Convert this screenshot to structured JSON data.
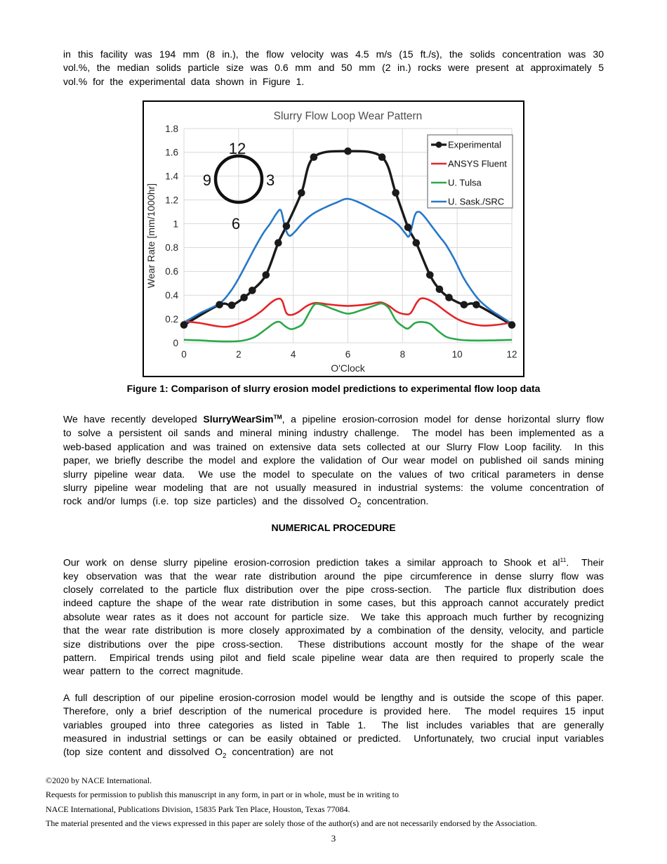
{
  "page": {
    "intro_paragraph": "in this facility was 194 mm (8 in.), the flow velocity was 4.5 m/s (15 ft./s), the solids concentration was 30 vol.%, the median solids particle size was 0.6 mm and 50 mm (2 in.) rocks were present at approximately 5 vol.% for the experimental data shown in Figure 1.",
    "figure_caption": "Figure 1: Comparison of slurry erosion model predictions to experimental flow loop data",
    "heading_numerical": "NUMERICAL PROCEDURE",
    "para_model": {
      "p1": "We have recently developed ",
      "brand": "SlurryWearSim",
      "tm": "TM",
      "p2": ", a pipeline erosion-corrosion model for dense horizontal slurry flow to solve a persistent oil sands and mineral mining industry challenge.  The model has been implemented as a web-based application and was trained on extensive data sets collected at our Slurry Flow Loop facility.  In this paper, we briefly describe the model and explore the validation of Our wear model on published oil sands mining slurry pipeline wear data.  We use the model to speculate on the values of two critical parameters in dense slurry pipeline wear modeling that are not usually measured in industrial systems: the volume concentration of rock and/or lumps (i.e. top size particles) and the dissolved O",
      "sub": "2",
      "p3": " concentration."
    },
    "para_numerical": {
      "p1": "Our work on dense slurry pipeline erosion-corrosion prediction takes a similar approach to Shook et al",
      "ref": "11",
      "p2": ".  Their key observation was that the wear rate distribution around the pipe circumference in dense slurry flow was closely correlated to the particle flux distribution over the pipe cross-section.  The particle flux distribution does indeed capture the shape of the wear rate distribution in some cases, but this approach cannot accurately predict absolute wear rates as it does not account for particle size.  We take this approach much further by recognizing that the wear rate distribution is more closely approximated by a combination of the density, velocity, and particle size distributions over the pipe cross-section.  These distributions account mostly for the shape of the wear pattern.  Empirical trends using pilot and field scale pipeline wear data are then required to properly scale the wear pattern to the correct magnitude."
    },
    "para_description": {
      "p1": "A full description of our pipeline erosion-corrosion model would be lengthy and is outside the scope of this paper.  Therefore, only a brief description of the numerical procedure is provided here.  The model requires 15 input variables grouped into three categories as listed in Table 1.  The list includes variables that are generally measured in industrial settings or can be easily obtained or predicted.  Unfortunately, two crucial input variables (top size content and dissolved O",
      "sub": "2",
      "p2": " concentration) are not"
    },
    "footer": {
      "lines": [
        "©2020 by NACE International.",
        "Requests for permission to publish this manuscript in any form, in part or in whole, must be in writing to",
        "NACE International, Publications Division, 15835 Park Ten Place, Houston, Texas 77084.",
        "The material presented and the views expressed in this paper are solely those of the author(s) and are not necessarily endorsed by the Association."
      ],
      "page_number": "3"
    }
  },
  "chart_data": {
    "type": "line",
    "title": "Slurry Flow Loop Wear Pattern",
    "xlabel": "O'Clock",
    "ylabel": "Wear Rate [mm/1000hr]",
    "xlim": [
      0,
      12
    ],
    "ylim": [
      0,
      1.8
    ],
    "xticks": [
      0,
      2,
      4,
      6,
      8,
      10,
      12
    ],
    "ytick_step": 0.2,
    "grid": true,
    "legend_position": "top-right",
    "inset_clock_labels": {
      "top": "12",
      "right": "3",
      "bottom": "6",
      "left": "9"
    },
    "colors": {
      "grid": "#d9d9d9",
      "title": "#4d4d4d",
      "tick": "#262626",
      "legend_border": "#808080"
    },
    "series": [
      {
        "name": "Experimental",
        "color": "#1a1a1a",
        "marker": true,
        "points": [
          [
            0,
            0.15
          ],
          [
            1.3,
            0.32
          ],
          [
            1.75,
            0.315
          ],
          [
            2.2,
            0.38
          ],
          [
            2.5,
            0.44
          ],
          [
            3.0,
            0.57
          ],
          [
            3.45,
            0.84
          ],
          [
            3.75,
            0.98
          ],
          [
            4.3,
            1.26
          ],
          [
            4.75,
            1.56
          ],
          [
            6.0,
            1.61
          ],
          [
            7.25,
            1.56
          ],
          [
            7.75,
            1.26
          ],
          [
            8.2,
            0.97
          ],
          [
            8.5,
            0.84
          ],
          [
            9.0,
            0.57
          ],
          [
            9.35,
            0.45
          ],
          [
            9.7,
            0.38
          ],
          [
            10.25,
            0.32
          ],
          [
            10.7,
            0.32
          ],
          [
            12,
            0.15
          ]
        ]
      },
      {
        "name": "ANSYS Fluent",
        "color": "#e32629",
        "marker": false,
        "points": [
          [
            0,
            0.18
          ],
          [
            0.6,
            0.165
          ],
          [
            1.2,
            0.14
          ],
          [
            1.6,
            0.135
          ],
          [
            2.0,
            0.16
          ],
          [
            2.4,
            0.2
          ],
          [
            2.8,
            0.26
          ],
          [
            3.2,
            0.34
          ],
          [
            3.45,
            0.37
          ],
          [
            3.6,
            0.35
          ],
          [
            3.75,
            0.25
          ],
          [
            3.95,
            0.235
          ],
          [
            4.2,
            0.26
          ],
          [
            4.5,
            0.31
          ],
          [
            4.8,
            0.335
          ],
          [
            5.2,
            0.325
          ],
          [
            5.6,
            0.315
          ],
          [
            6.0,
            0.31
          ],
          [
            6.4,
            0.315
          ],
          [
            6.8,
            0.325
          ],
          [
            7.2,
            0.34
          ],
          [
            7.5,
            0.31
          ],
          [
            7.8,
            0.26
          ],
          [
            8.1,
            0.24
          ],
          [
            8.3,
            0.25
          ],
          [
            8.5,
            0.33
          ],
          [
            8.65,
            0.37
          ],
          [
            8.85,
            0.37
          ],
          [
            9.2,
            0.33
          ],
          [
            9.6,
            0.26
          ],
          [
            10.0,
            0.2
          ],
          [
            10.4,
            0.165
          ],
          [
            10.9,
            0.145
          ],
          [
            11.4,
            0.15
          ],
          [
            12,
            0.17
          ]
        ]
      },
      {
        "name": "U. Tulsa",
        "color": "#2ba84a",
        "marker": false,
        "points": [
          [
            0,
            0.025
          ],
          [
            0.6,
            0.02
          ],
          [
            1.2,
            0.013
          ],
          [
            1.8,
            0.012
          ],
          [
            2.2,
            0.02
          ],
          [
            2.6,
            0.05
          ],
          [
            3.0,
            0.115
          ],
          [
            3.3,
            0.165
          ],
          [
            3.5,
            0.175
          ],
          [
            3.7,
            0.14
          ],
          [
            3.9,
            0.115
          ],
          [
            4.1,
            0.125
          ],
          [
            4.35,
            0.16
          ],
          [
            4.6,
            0.26
          ],
          [
            4.8,
            0.325
          ],
          [
            5.1,
            0.315
          ],
          [
            5.5,
            0.28
          ],
          [
            6.0,
            0.245
          ],
          [
            6.5,
            0.275
          ],
          [
            7.0,
            0.315
          ],
          [
            7.25,
            0.33
          ],
          [
            7.5,
            0.29
          ],
          [
            7.75,
            0.19
          ],
          [
            8.0,
            0.14
          ],
          [
            8.2,
            0.12
          ],
          [
            8.45,
            0.165
          ],
          [
            8.7,
            0.175
          ],
          [
            9.0,
            0.16
          ],
          [
            9.3,
            0.1
          ],
          [
            9.6,
            0.05
          ],
          [
            9.95,
            0.03
          ],
          [
            10.4,
            0.02
          ],
          [
            11.2,
            0.02
          ],
          [
            12,
            0.025
          ]
        ]
      },
      {
        "name": "U. Sask./SRC",
        "color": "#2878c8",
        "marker": false,
        "points": [
          [
            0,
            0.17
          ],
          [
            0.6,
            0.25
          ],
          [
            1.3,
            0.33
          ],
          [
            1.7,
            0.43
          ],
          [
            2.0,
            0.54
          ],
          [
            2.3,
            0.67
          ],
          [
            2.6,
            0.8
          ],
          [
            2.9,
            0.92
          ],
          [
            3.15,
            1.0
          ],
          [
            3.4,
            1.09
          ],
          [
            3.55,
            1.11
          ],
          [
            3.7,
            0.97
          ],
          [
            3.85,
            0.9
          ],
          [
            4.05,
            0.93
          ],
          [
            4.35,
            1.01
          ],
          [
            4.7,
            1.08
          ],
          [
            5.1,
            1.13
          ],
          [
            5.6,
            1.18
          ],
          [
            6.0,
            1.21
          ],
          [
            6.5,
            1.17
          ],
          [
            7.0,
            1.11
          ],
          [
            7.5,
            1.05
          ],
          [
            7.85,
            0.99
          ],
          [
            8.1,
            0.92
          ],
          [
            8.25,
            0.9
          ],
          [
            8.45,
            1.07
          ],
          [
            8.6,
            1.1
          ],
          [
            8.8,
            1.06
          ],
          [
            9.1,
            0.97
          ],
          [
            9.4,
            0.88
          ],
          [
            9.6,
            0.82
          ],
          [
            9.9,
            0.7
          ],
          [
            10.2,
            0.56
          ],
          [
            10.5,
            0.45
          ],
          [
            10.8,
            0.36
          ],
          [
            11.2,
            0.28
          ],
          [
            11.6,
            0.22
          ],
          [
            12,
            0.16
          ]
        ]
      }
    ]
  }
}
